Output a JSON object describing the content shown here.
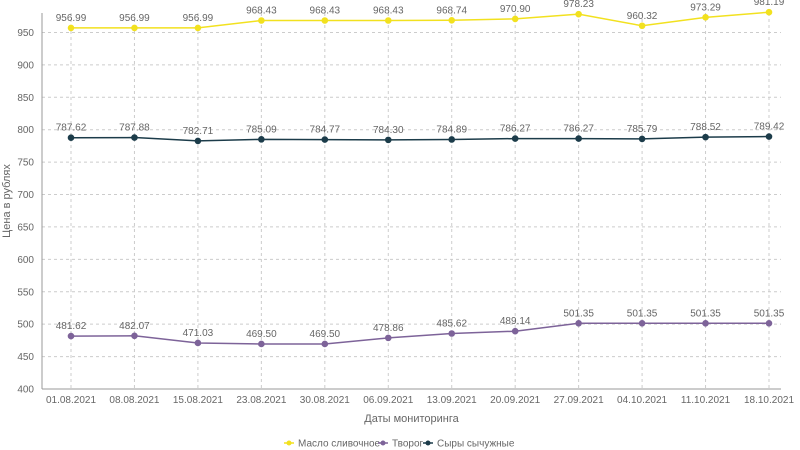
{
  "chart_data": {
    "type": "line",
    "title": "",
    "xlabel": "Даты мониторинга",
    "ylabel": "Цена в рублях",
    "ylim": [
      400,
      980
    ],
    "yticks": [
      400,
      450,
      500,
      550,
      600,
      650,
      700,
      750,
      800,
      850,
      900,
      950
    ],
    "grid": true,
    "legend_position": "bottom-center",
    "categories": [
      "01.08.2021",
      "08.08.2021",
      "15.08.2021",
      "23.08.2021",
      "30.08.2021",
      "06.09.2021",
      "13.09.2021",
      "20.09.2021",
      "27.09.2021",
      "04.10.2021",
      "11.10.2021",
      "18.10.2021"
    ],
    "series": [
      {
        "name": "Масло сливочное",
        "color": "#f2e11f",
        "values": [
          956.99,
          956.99,
          956.99,
          968.43,
          968.43,
          968.43,
          968.74,
          970.9,
          978.23,
          960.32,
          973.29,
          981.19
        ],
        "labels": [
          "956.99",
          "956.99",
          "956.99",
          "968.43",
          "968.43",
          "968.43",
          "968.74",
          "970.90",
          "978.23",
          "960.32",
          "973.29",
          "981.19"
        ]
      },
      {
        "name": "Творог",
        "color": "#7d6399",
        "values": [
          481.62,
          482.07,
          471.03,
          469.5,
          469.5,
          478.86,
          485.62,
          489.14,
          501.35,
          501.35,
          501.35,
          501.35
        ],
        "labels": [
          "481.62",
          "482.07",
          "471.03",
          "469.50",
          "469.50",
          "478.86",
          "485.62",
          "489.14",
          "501.35",
          "501.35",
          "501.35",
          "501.35"
        ]
      },
      {
        "name": "Сыры сычужные",
        "color": "#1c3c4a",
        "values": [
          787.62,
          787.88,
          782.71,
          785.09,
          784.77,
          784.3,
          784.89,
          786.27,
          786.27,
          785.79,
          788.52,
          789.42
        ],
        "labels": [
          "787.62",
          "787.88",
          "782.71",
          "785.09",
          "784.77",
          "784.30",
          "784.89",
          "786.27",
          "786.27",
          "785.79",
          "788.52",
          "789.42"
        ]
      }
    ]
  }
}
